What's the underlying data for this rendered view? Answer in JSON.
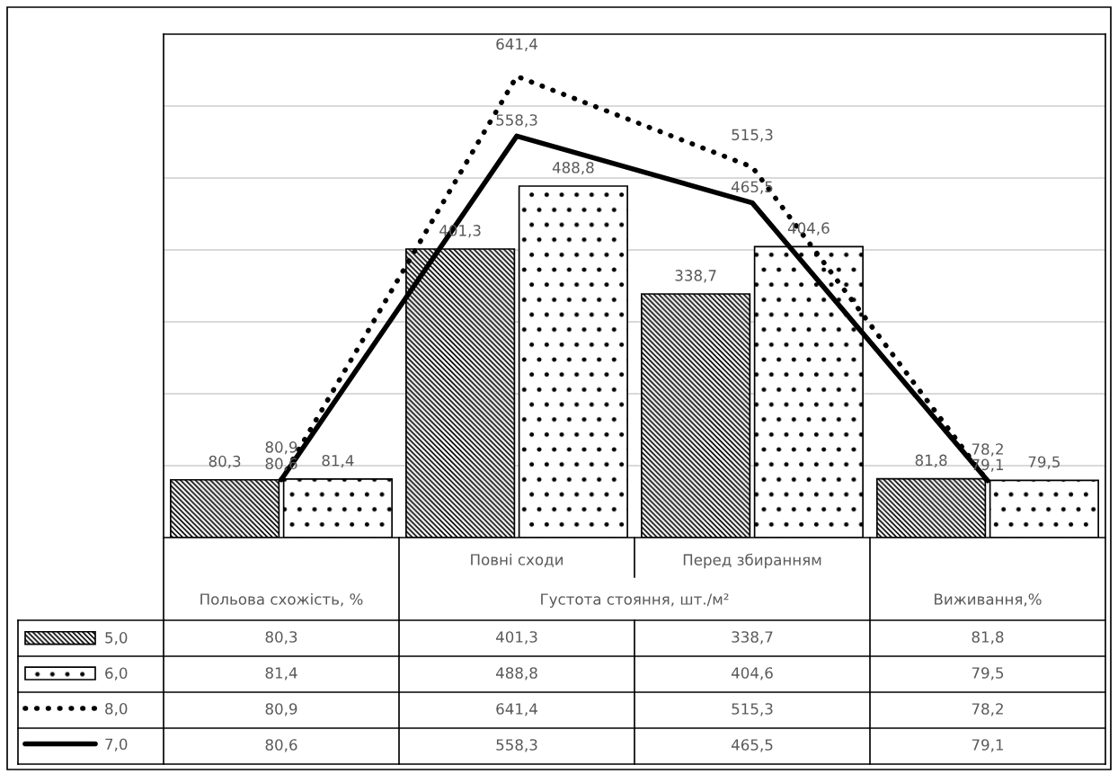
{
  "chart_data": {
    "type": "bar",
    "categories": [
      "Польова схожість, %",
      "Повні сходи",
      "Перед збиранням",
      "Виживання,%"
    ],
    "annotations": [
      "Густота стояння, шт./м²"
    ],
    "series": [
      {
        "name": "5,0",
        "color": "#000000",
        "values": [
          80.3,
          401.3,
          338.7,
          81.8
        ],
        "value_labels": [
          "80,3",
          "401,3",
          "338,7",
          "81,8"
        ]
      },
      {
        "name": "6,0",
        "color": "#000000",
        "values": [
          81.4,
          488.8,
          404.6,
          79.5
        ],
        "value_labels": [
          "81,4",
          "488,8",
          "404,6",
          "79,5"
        ]
      },
      {
        "name": "8,0",
        "type": "line",
        "color": "#000000",
        "line_style": "dotted",
        "values": [
          80.9,
          641.4,
          515.3,
          78.2
        ],
        "value_labels": [
          "80,9",
          "641,4",
          "515,3",
          "78,2"
        ]
      },
      {
        "name": "7,0",
        "type": "line",
        "color": "#000000",
        "line_style": "solid",
        "values": [
          80.6,
          558.3,
          465.5,
          79.1
        ],
        "value_labels": [
          "80,6",
          "558,3",
          "465,5",
          "79,1"
        ]
      }
    ],
    "ylim": [
      0,
      700
    ],
    "yticks": [
      {
        "value": 100,
        "label": null
      },
      {
        "value": 200,
        "label": null
      },
      {
        "value": 300,
        "label": null
      },
      {
        "value": 400,
        "label": null
      },
      {
        "value": 500,
        "label": null
      },
      {
        "value": 600,
        "label": null
      }
    ],
    "grid": "y",
    "legend": "bottom",
    "marker": "none"
  }
}
